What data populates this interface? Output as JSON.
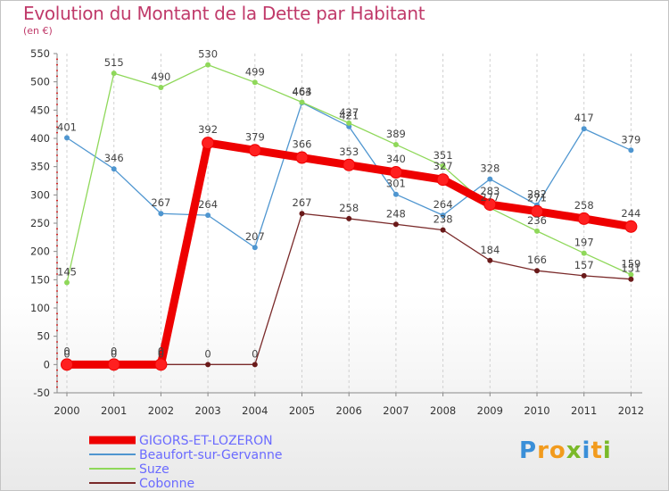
{
  "title": "Evolution du Montant de la Dette par Habitant",
  "unit": "(en €)",
  "brand": {
    "letters": [
      {
        "ch": "P",
        "color": "#3a8fd8"
      },
      {
        "ch": "r",
        "color": "#f29b1d"
      },
      {
        "ch": "o",
        "color": "#f29b1d"
      },
      {
        "ch": "x",
        "color": "#7ab929"
      },
      {
        "ch": "i",
        "color": "#3a8fd8"
      },
      {
        "ch": "t",
        "color": "#f29b1d"
      },
      {
        "ch": "i",
        "color": "#7ab929"
      }
    ]
  },
  "chart_data": {
    "type": "line",
    "title": "Evolution du Montant de la Dette par Habitant",
    "ylabel": "(en €)",
    "xlabel": "",
    "categories": [
      "2000",
      "2001",
      "2002",
      "2003",
      "2004",
      "2005",
      "2006",
      "2007",
      "2008",
      "2009",
      "2010",
      "2011",
      "2012"
    ],
    "ylim": [
      -50,
      550
    ],
    "yticks": [
      -50,
      0,
      50,
      100,
      150,
      200,
      250,
      300,
      350,
      400,
      450,
      500,
      550
    ],
    "grid": "vertical-dashed",
    "series": [
      {
        "name": "GIGORS-ET-LOZERON",
        "color": "#ee0000",
        "marker": "#ff2020",
        "bold": true,
        "values": [
          0,
          0,
          0,
          392,
          379,
          366,
          353,
          340,
          327,
          283,
          271,
          258,
          244
        ]
      },
      {
        "name": "Beaufort-sur-Gervanne",
        "color": "#4f96d0",
        "marker": "#4f96d0",
        "bold": false,
        "values": [
          401,
          346,
          267,
          264,
          207,
          463,
          421,
          301,
          264,
          328,
          282,
          417,
          379
        ]
      },
      {
        "name": "Suze",
        "color": "#8fd85a",
        "marker": "#8fd85a",
        "bold": false,
        "values": [
          145,
          515,
          490,
          530,
          499,
          464,
          427,
          389,
          351,
          277,
          236,
          197,
          159
        ]
      },
      {
        "name": "Cobonne",
        "color": "#7a2a2a",
        "marker": "#6a1a1a",
        "bold": false,
        "values": [
          0,
          0,
          0,
          0,
          0,
          267,
          258,
          248,
          238,
          184,
          166,
          157,
          151
        ]
      }
    ],
    "legend_position": "bottom-left"
  }
}
